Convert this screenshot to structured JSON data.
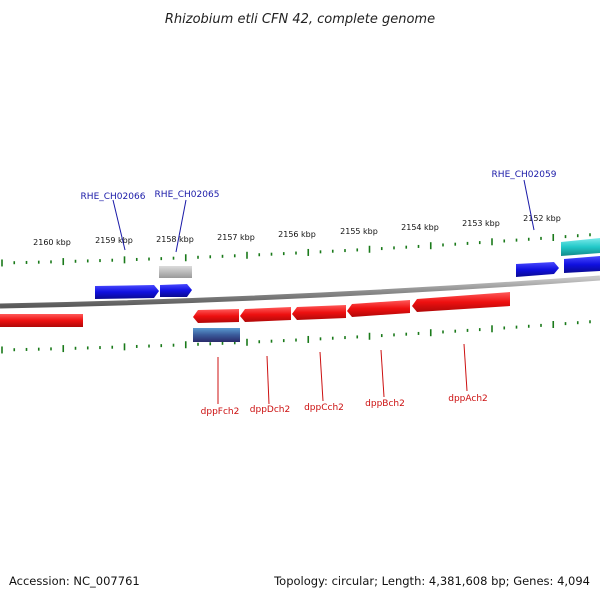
{
  "title": "Rhizobium etli CFN 42, complete genome",
  "footer": {
    "accession": "Accession: NC_007761",
    "summary": "Topology: circular; Length: 4,381,608 bp; Genes: 4,094"
  },
  "ruler": {
    "labels": [
      "2160 kbp",
      "2159 kbp",
      "2158 kbp",
      "2157 kbp",
      "2156 kbp",
      "2155 kbp",
      "2154 kbp",
      "2153 kbp",
      "2152 kbp"
    ]
  },
  "genes_top": [
    {
      "label": "RHE_CH02066",
      "color": "#1010e0"
    },
    {
      "label": "RHE_CH02065",
      "color": "#1010e0"
    },
    {
      "label": "RHE_CH02059",
      "color": "#1010e0"
    }
  ],
  "genes_bottom": [
    {
      "label": "dppFch2",
      "color": "#ee1010"
    },
    {
      "label": "dppDch2",
      "color": "#ee1010"
    },
    {
      "label": "dppCch2",
      "color": "#ee1010"
    },
    {
      "label": "dppBch2",
      "color": "#ee1010"
    },
    {
      "label": "dppAch2",
      "color": "#ee1010"
    }
  ],
  "colors": {
    "ruler_ticks": "#1a7a1a",
    "backbone": "#8a8a8a",
    "forward_gene": "#1010e0",
    "reverse_gene": "#ee1010",
    "pseudo_gene": "#b8b8b8",
    "rna_gene_top": "#22c8c8",
    "rna_gene_bottom": "#4a4a9a"
  }
}
